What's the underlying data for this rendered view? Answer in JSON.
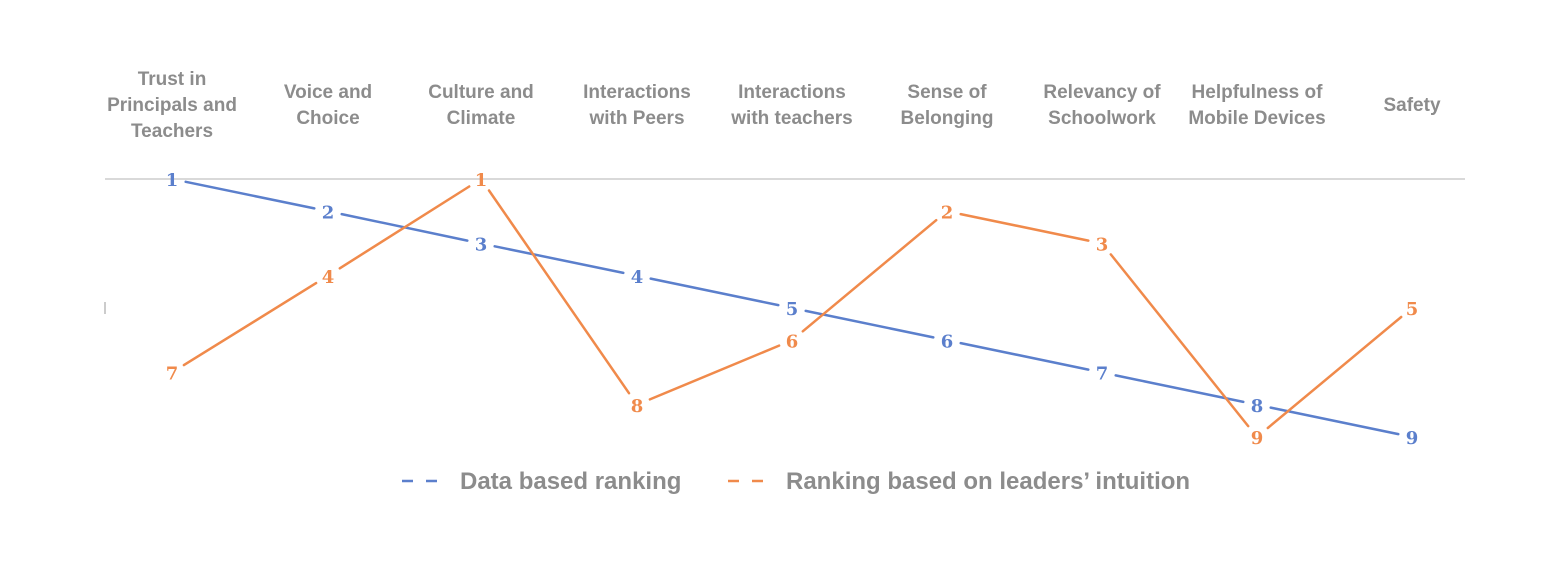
{
  "chart_data": {
    "type": "line",
    "categories": [
      [
        "Trust in",
        "Principals and",
        "Teachers"
      ],
      [
        "Voice and",
        "Choice"
      ],
      [
        "Culture and",
        "Climate"
      ],
      [
        "Interactions",
        "with Peers"
      ],
      [
        "Interactions",
        "with teachers"
      ],
      [
        "Sense of",
        "Belonging"
      ],
      [
        "Relevancy of",
        "Schoolwork"
      ],
      [
        "Helpfulness of",
        "Mobile Devices"
      ],
      [
        "Safety"
      ]
    ],
    "series": [
      {
        "name": "Data based ranking",
        "color": "#5b7fcc",
        "values": [
          1,
          2,
          3,
          4,
          5,
          6,
          7,
          8,
          9
        ]
      },
      {
        "name": "Ranking based on leaders’ intuition",
        "color": "#f08a4b",
        "values": [
          7,
          4,
          1,
          8,
          6,
          2,
          3,
          9,
          5
        ]
      }
    ],
    "y_reversed": true,
    "ylim": [
      1,
      9
    ],
    "grid": true,
    "legend_position": "bottom"
  }
}
